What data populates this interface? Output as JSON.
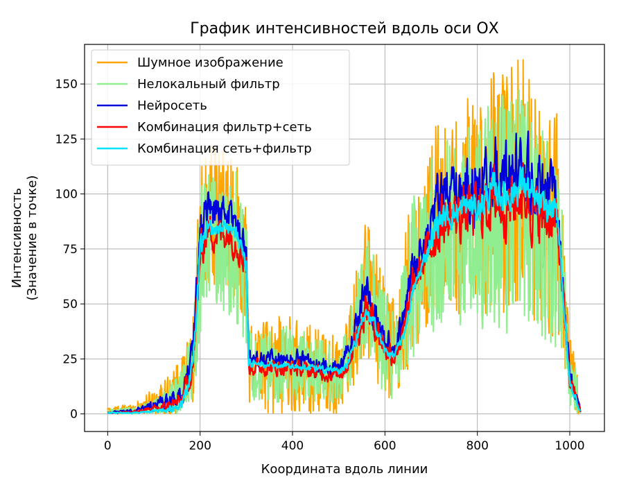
{
  "chart_data": {
    "type": "line",
    "title": "График интенсивностей вдоль оси ОХ",
    "xlabel": "Координата вдоль линии",
    "ylabel_line1": "Интенсивность",
    "ylabel_line2": "(Значение в точке)",
    "xlim": [
      -50,
      1075
    ],
    "ylim": [
      -8,
      168
    ],
    "x_ticks": [
      0,
      200,
      400,
      600,
      800,
      1000
    ],
    "y_ticks": [
      0,
      25,
      50,
      75,
      100,
      125,
      150
    ],
    "grid": true,
    "legend_position": "top-left",
    "x_domain": [
      0,
      1023
    ],
    "series": [
      {
        "name": "Шумное изображение",
        "color": "#ffa500",
        "envelope_x": [
          0,
          60,
          120,
          160,
          185,
          200,
          215,
          240,
          260,
          280,
          300,
          305,
          320,
          350,
          400,
          450,
          500,
          520,
          540,
          560,
          580,
          600,
          620,
          640,
          660,
          680,
          700,
          720,
          740,
          760,
          780,
          800,
          820,
          840,
          860,
          880,
          900,
          920,
          940,
          960,
          975,
          990,
          1000,
          1010,
          1023
        ],
        "envelope_hi": [
          3,
          5,
          15,
          25,
          45,
          110,
          125,
          120,
          120,
          115,
          100,
          45,
          40,
          45,
          45,
          40,
          35,
          45,
          70,
          95,
          75,
          60,
          55,
          75,
          110,
          105,
          125,
          140,
          130,
          135,
          145,
          140,
          150,
          160,
          155,
          160,
          165,
          150,
          140,
          145,
          135,
          70,
          35,
          30,
          5
        ],
        "envelope_lo": [
          0,
          0,
          0,
          0,
          5,
          40,
          60,
          55,
          55,
          50,
          40,
          5,
          5,
          0,
          0,
          0,
          0,
          10,
          15,
          25,
          15,
          5,
          5,
          15,
          25,
          35,
          40,
          45,
          50,
          45,
          50,
          50,
          45,
          50,
          45,
          45,
          55,
          40,
          40,
          35,
          35,
          20,
          5,
          0,
          0
        ]
      },
      {
        "name": "Нелокальный фильтр",
        "color": "#90ee90",
        "envelope_x": [
          0,
          60,
          120,
          160,
          185,
          200,
          215,
          240,
          260,
          280,
          300,
          305,
          320,
          350,
          400,
          450,
          500,
          520,
          540,
          560,
          580,
          600,
          620,
          640,
          660,
          680,
          700,
          720,
          740,
          760,
          780,
          800,
          820,
          840,
          860,
          880,
          900,
          920,
          940,
          960,
          975,
          990,
          1000,
          1010,
          1023
        ],
        "envelope_hi": [
          2,
          3,
          10,
          20,
          40,
          100,
          115,
          110,
          110,
          110,
          95,
          40,
          35,
          40,
          40,
          35,
          30,
          40,
          65,
          85,
          70,
          55,
          50,
          70,
          100,
          100,
          118,
          130,
          125,
          128,
          135,
          130,
          140,
          150,
          145,
          150,
          155,
          140,
          130,
          135,
          125,
          65,
          30,
          25,
          3
        ],
        "envelope_lo": [
          0,
          0,
          0,
          0,
          5,
          35,
          50,
          45,
          45,
          40,
          30,
          5,
          5,
          5,
          5,
          5,
          5,
          10,
          20,
          30,
          20,
          5,
          5,
          15,
          25,
          35,
          35,
          35,
          40,
          40,
          40,
          40,
          35,
          40,
          35,
          35,
          45,
          35,
          30,
          30,
          30,
          15,
          5,
          0,
          0
        ]
      },
      {
        "name": "Нейросеть",
        "color": "#0000dd",
        "envelope_x": [
          0,
          60,
          120,
          160,
          185,
          200,
          215,
          240,
          260,
          280,
          300,
          305,
          320,
          350,
          400,
          450,
          500,
          520,
          540,
          560,
          580,
          600,
          620,
          640,
          660,
          680,
          700,
          720,
          740,
          760,
          780,
          800,
          820,
          840,
          860,
          880,
          900,
          920,
          940,
          960,
          975,
          990,
          1000,
          1010,
          1023
        ],
        "envelope_hi": [
          1,
          3,
          10,
          15,
          40,
          100,
          112,
          108,
          106,
          100,
          90,
          35,
          33,
          32,
          32,
          30,
          28,
          35,
          55,
          75,
          60,
          45,
          40,
          55,
          80,
          90,
          110,
          125,
          120,
          122,
          128,
          125,
          133,
          140,
          135,
          138,
          142,
          130,
          125,
          125,
          120,
          55,
          25,
          20,
          2
        ],
        "envelope_lo": [
          0,
          0,
          0,
          0,
          10,
          60,
          80,
          75,
          78,
          70,
          60,
          15,
          18,
          18,
          18,
          15,
          14,
          18,
          30,
          40,
          32,
          22,
          20,
          30,
          50,
          60,
          65,
          75,
          75,
          78,
          80,
          78,
          82,
          85,
          82,
          82,
          88,
          80,
          75,
          75,
          70,
          35,
          10,
          5,
          0
        ]
      },
      {
        "name": "Комбинация фильтр+сеть",
        "color": "#ff0000",
        "envelope_x": [
          0,
          60,
          120,
          160,
          185,
          200,
          215,
          240,
          260,
          280,
          300,
          305,
          320,
          350,
          400,
          450,
          500,
          520,
          540,
          560,
          580,
          600,
          620,
          640,
          660,
          680,
          700,
          720,
          740,
          760,
          780,
          800,
          820,
          840,
          860,
          880,
          900,
          920,
          940,
          960,
          975,
          990,
          1000,
          1010,
          1023
        ],
        "envelope_hi": [
          1,
          2,
          6,
          12,
          35,
          90,
          98,
          96,
          95,
          92,
          82,
          30,
          28,
          27,
          27,
          25,
          24,
          30,
          48,
          62,
          52,
          40,
          35,
          45,
          70,
          80,
          98,
          110,
          108,
          110,
          115,
          112,
          118,
          122,
          118,
          120,
          125,
          115,
          110,
          110,
          105,
          50,
          22,
          15,
          2
        ],
        "envelope_lo": [
          0,
          0,
          0,
          0,
          10,
          55,
          70,
          68,
          70,
          65,
          55,
          14,
          15,
          15,
          15,
          13,
          12,
          16,
          25,
          35,
          28,
          20,
          18,
          28,
          45,
          55,
          58,
          65,
          68,
          70,
          70,
          70,
          72,
          75,
          72,
          72,
          78,
          70,
          68,
          68,
          62,
          30,
          8,
          5,
          0
        ]
      },
      {
        "name": "Комбинация сеть+фильтр",
        "color": "#00e5ff",
        "envelope_x": [
          0,
          60,
          120,
          160,
          185,
          200,
          215,
          240,
          260,
          280,
          300,
          305,
          320,
          350,
          400,
          450,
          500,
          520,
          540,
          560,
          580,
          600,
          620,
          640,
          660,
          680,
          700,
          720,
          740,
          760,
          780,
          800,
          820,
          840,
          860,
          880,
          900,
          920,
          940,
          960,
          975,
          990,
          1000,
          1010,
          1023
        ],
        "envelope_hi": [
          1,
          1,
          3,
          8,
          30,
          85,
          92,
          90,
          90,
          88,
          78,
          28,
          25,
          24,
          24,
          23,
          22,
          26,
          40,
          50,
          45,
          32,
          30,
          38,
          60,
          72,
          90,
          100,
          100,
          102,
          106,
          104,
          110,
          115,
          112,
          115,
          120,
          110,
          105,
          105,
          100,
          45,
          18,
          12,
          2
        ],
        "envelope_lo": [
          0,
          0,
          0,
          0,
          15,
          65,
          80,
          78,
          80,
          75,
          60,
          18,
          20,
          20,
          20,
          18,
          17,
          20,
          30,
          40,
          35,
          25,
          23,
          32,
          50,
          62,
          70,
          78,
          80,
          82,
          84,
          82,
          86,
          90,
          86,
          88,
          92,
          85,
          82,
          82,
          78,
          35,
          10,
          5,
          0
        ]
      }
    ]
  }
}
